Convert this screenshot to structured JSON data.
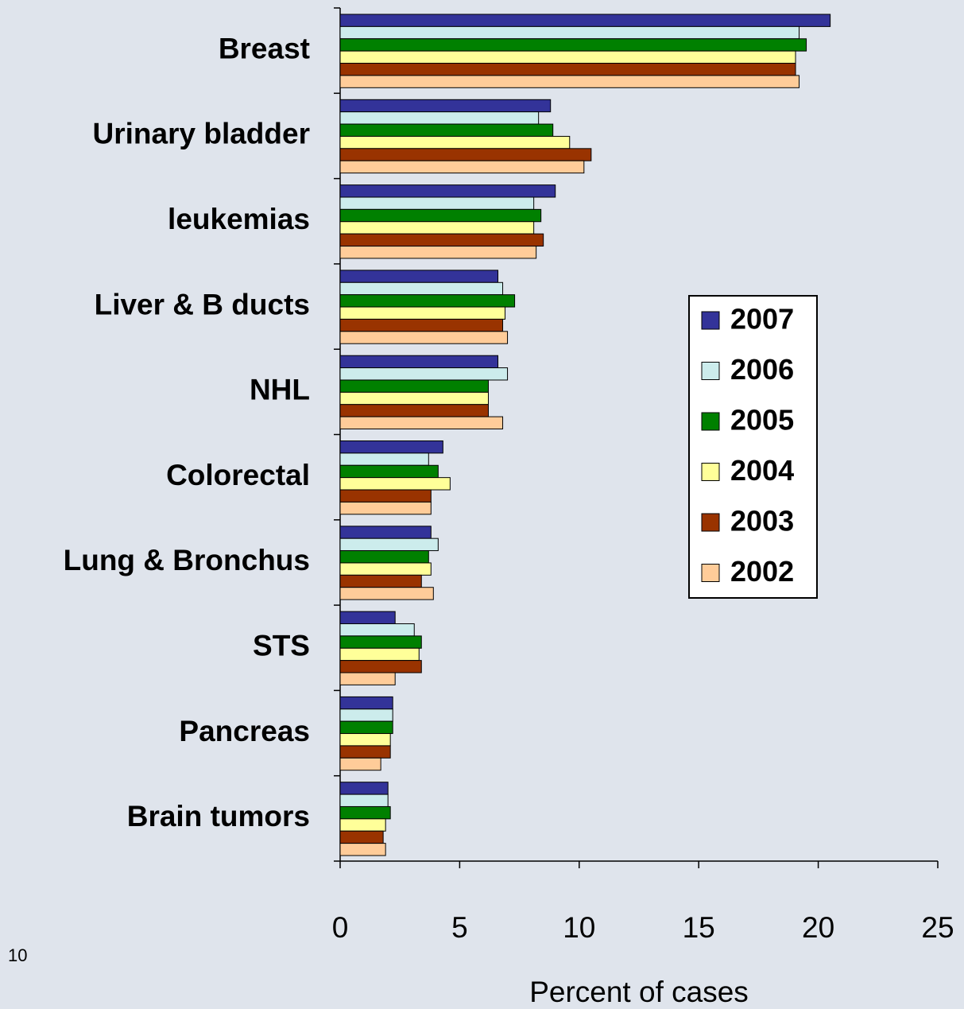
{
  "page_number": "10",
  "chart_data": {
    "type": "barh",
    "xlabel": "Percent of cases",
    "categories": [
      "Breast",
      "Urinary bladder",
      "leukemias",
      "Liver & B ducts",
      "NHL",
      "Colorectal",
      "Lung & Bronchus",
      "STS",
      "Pancreas",
      "Brain tumors"
    ],
    "series": [
      {
        "name": "2007",
        "color": "#333399",
        "values": [
          20.5,
          8.8,
          9.0,
          6.6,
          6.6,
          4.3,
          3.8,
          2.3,
          2.2,
          2.0
        ]
      },
      {
        "name": "2006",
        "color": "#ccecec",
        "values": [
          19.2,
          8.3,
          8.1,
          6.8,
          7.0,
          3.7,
          4.1,
          3.1,
          2.2,
          2.0
        ]
      },
      {
        "name": "2005",
        "color": "#008000",
        "values": [
          19.5,
          8.9,
          8.4,
          7.3,
          6.2,
          4.1,
          3.7,
          3.4,
          2.2,
          2.1
        ]
      },
      {
        "name": "2004",
        "color": "#ffff99",
        "values": [
          19.05,
          9.6,
          8.1,
          6.9,
          6.2,
          4.6,
          3.8,
          3.3,
          2.1,
          1.9
        ]
      },
      {
        "name": "2003",
        "color": "#993300",
        "values": [
          19.05,
          10.5,
          8.5,
          6.8,
          6.2,
          3.8,
          3.4,
          3.4,
          2.1,
          1.8
        ]
      },
      {
        "name": "2002",
        "color": "#ffcc99",
        "values": [
          19.2,
          10.2,
          8.2,
          7.0,
          6.8,
          3.8,
          3.9,
          2.3,
          1.7,
          1.9
        ]
      }
    ],
    "xlim": [
      0,
      25
    ],
    "xticks": [
      0,
      5,
      10,
      15,
      20,
      25
    ],
    "legend": "right"
  }
}
